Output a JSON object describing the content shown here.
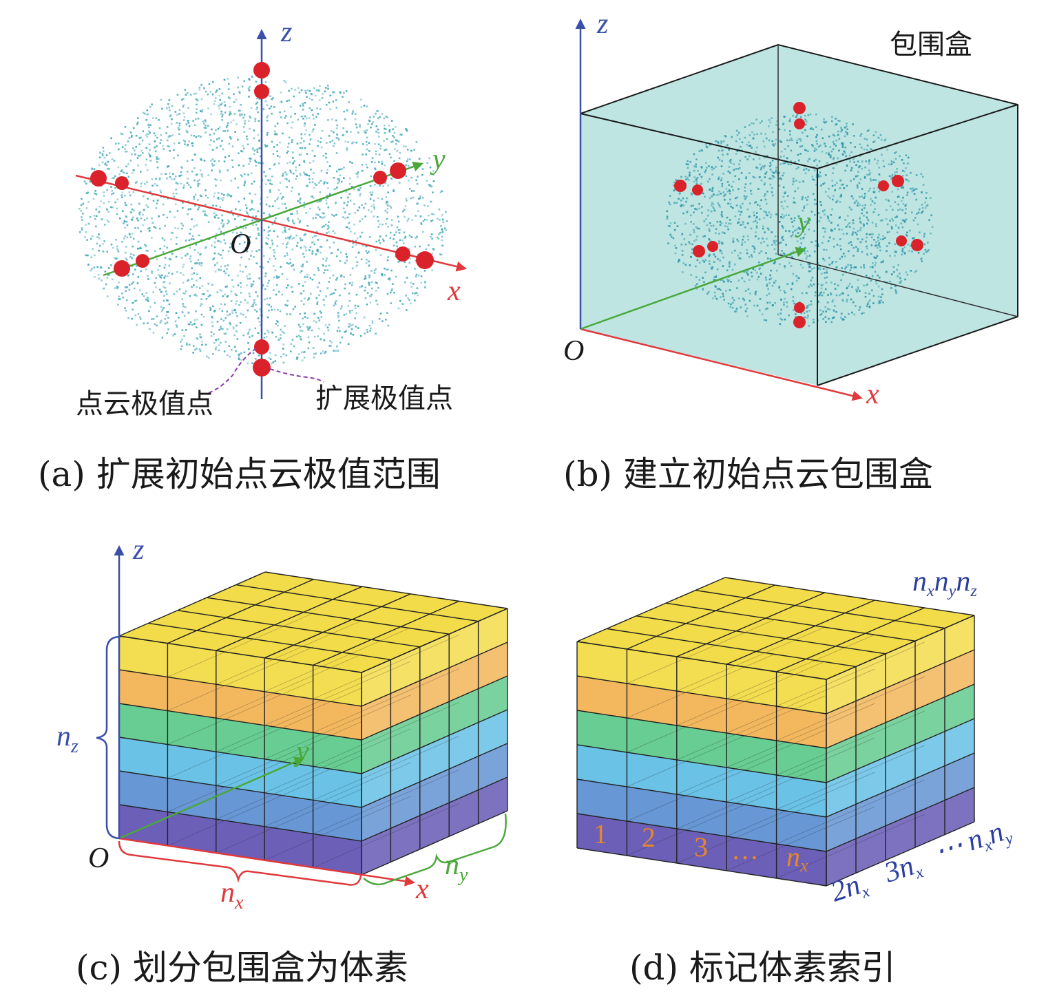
{
  "panels": {
    "a": {
      "caption": "(a) 扩展初始点云极值范围",
      "axis_labels": {
        "x": "x",
        "y": "y",
        "z": "z",
        "origin": "O"
      },
      "annotations": {
        "cloud_extreme": "点云极值点",
        "extended_extreme": "扩展极值点"
      }
    },
    "b": {
      "caption": "(b) 建立初始点云包围盒",
      "axis_labels": {
        "x": "x",
        "y": "y",
        "z": "z",
        "origin": "O"
      },
      "box_label": "包围盒"
    },
    "c": {
      "caption": "(c) 划分包围盒为体素",
      "axis_labels": {
        "x": "x",
        "y": "y",
        "z": "z",
        "origin": "O"
      },
      "dims": {
        "nx": "n",
        "nx_sub": "x",
        "ny": "n",
        "ny_sub": "y",
        "nz": "n",
        "nz_sub": "z"
      }
    },
    "d": {
      "caption": "(d) 标记体素索引",
      "front_indices": [
        "1",
        "2",
        "3",
        "…",
        "n"
      ],
      "front_last_sub": "x",
      "side_indices": {
        "a": "2n",
        "a_sub": "x",
        "b": "3n",
        "b_sub": "x",
        "dots": "⋯",
        "c": "n",
        "c_sub": "x",
        "d": "n",
        "d_sub": "y"
      },
      "top_label": {
        "p1": "n",
        "s1": "x",
        "p2": "n",
        "s2": "y",
        "p3": "n",
        "s3": "z"
      }
    }
  },
  "colors": {
    "x_axis": "#e0393c",
    "y_axis": "#4aa83a",
    "z_axis": "#3a50a8",
    "points": "#3fa7b8",
    "extreme": "#d9222a",
    "box_fill": "#a8dcd8",
    "index_orange": "#e8862a",
    "index_blue": "#2b3f9e",
    "layers": [
      "#f0d62a",
      "#f0a83a",
      "#46c27a",
      "#49b4e0",
      "#4680cc",
      "#4b3ca8"
    ]
  }
}
